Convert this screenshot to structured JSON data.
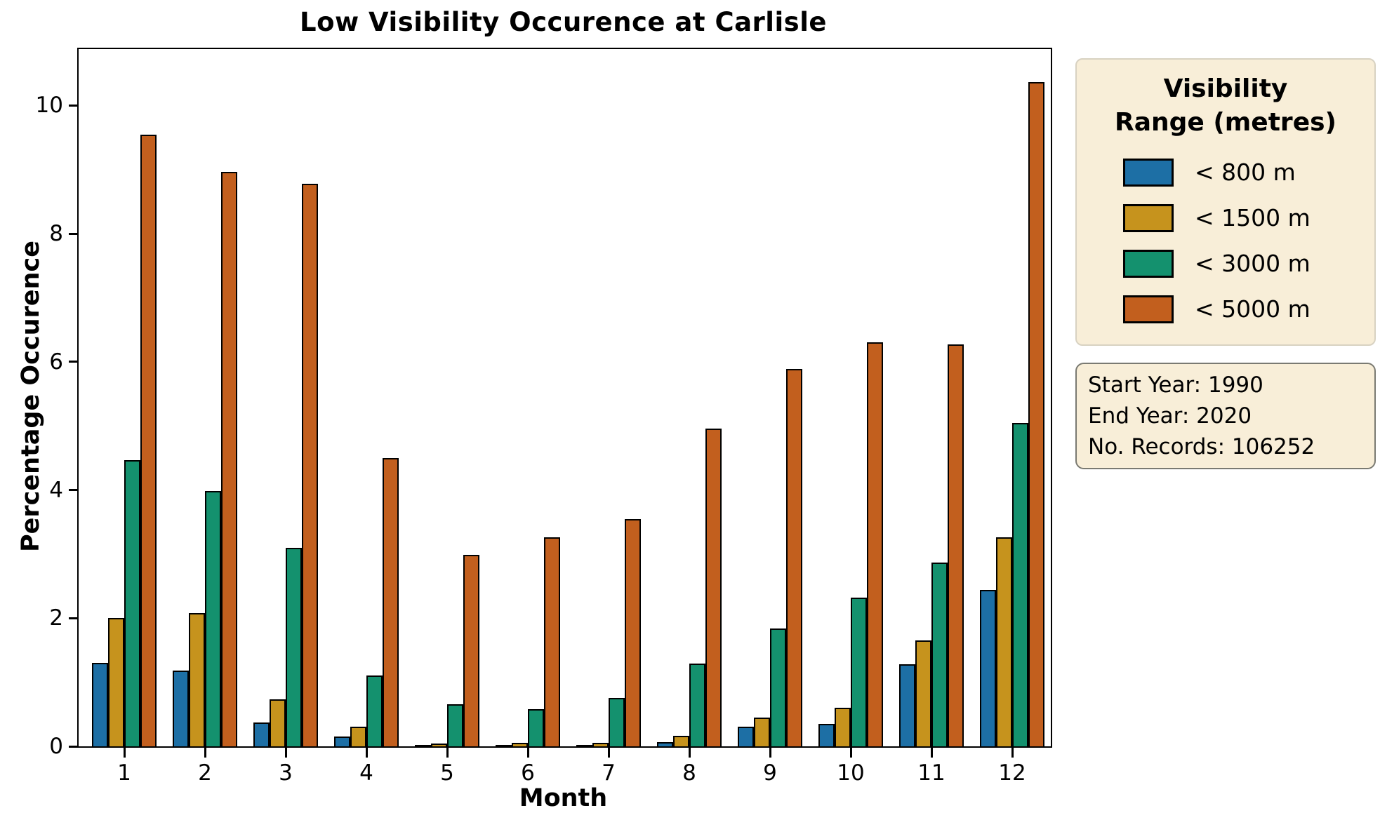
{
  "chart_data": {
    "type": "bar",
    "title": "Low Visibility Occurence at Carlisle",
    "xlabel": "Month",
    "ylabel": "Percentage Occurence",
    "categories": [
      "1",
      "2",
      "3",
      "4",
      "5",
      "6",
      "7",
      "8",
      "9",
      "10",
      "11",
      "12"
    ],
    "series": [
      {
        "name": "< 800 m",
        "color": "#1d6fa5",
        "values": [
          1.3,
          1.18,
          0.37,
          0.15,
          0.02,
          0.01,
          0.01,
          0.07,
          0.31,
          0.35,
          1.28,
          2.44
        ]
      },
      {
        "name": "< 1500 m",
        "color": "#c6931d",
        "values": [
          2.0,
          2.08,
          0.73,
          0.31,
          0.04,
          0.06,
          0.05,
          0.16,
          0.45,
          0.6,
          1.65,
          3.26
        ]
      },
      {
        "name": "< 3000 m",
        "color": "#14916e",
        "values": [
          4.47,
          3.98,
          3.1,
          1.11,
          0.66,
          0.58,
          0.76,
          1.29,
          1.84,
          2.32,
          2.87,
          5.05
        ]
      },
      {
        "name": "< 5000 m",
        "color": "#c25f1e",
        "values": [
          9.54,
          8.96,
          8.78,
          4.5,
          2.99,
          3.26,
          3.55,
          4.96,
          5.89,
          6.3,
          6.27,
          10.37
        ]
      }
    ],
    "ylim": [
      0,
      10.88
    ],
    "yticks": [
      0,
      2,
      4,
      6,
      8,
      10
    ],
    "grid": false,
    "legend_position": "outside-right",
    "bar_edge_color": "#000000"
  },
  "legend": {
    "title_line1": "Visibility",
    "title_line2": "Range (metres)"
  },
  "annotation": {
    "line1": "Start Year: 1990",
    "line2": "End Year: 2020",
    "line3": "No. Records: 106252"
  }
}
